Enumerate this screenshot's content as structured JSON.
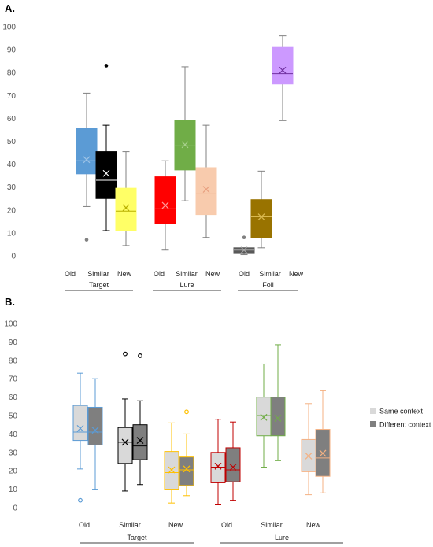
{
  "chart_data": [
    {
      "type": "box",
      "panel_label": "A.",
      "ylim": [
        0,
        100
      ],
      "yticks": [
        0,
        10,
        20,
        30,
        40,
        50,
        60,
        70,
        80,
        90,
        100
      ],
      "grid": false,
      "groups": [
        "Target",
        "Lure",
        "Foil"
      ],
      "categories": [
        "Old",
        "Similar",
        "New"
      ],
      "boxes": [
        {
          "group": "Target",
          "category": "Old",
          "min": 21.5,
          "q1": 35.8,
          "median": 41.5,
          "q3": 55.5,
          "max": 71,
          "mean": 42,
          "outliers": [
            7
          ],
          "color": "#5b9bd5",
          "median_color": "#9dc3e6",
          "mean_color": "#9dc3e6"
        },
        {
          "group": "Target",
          "category": "Similar",
          "min": 11,
          "q1": 25,
          "median": 33,
          "q3": 45.5,
          "max": 57,
          "mean": 36,
          "outliers": [
            83
          ],
          "color": "#000000",
          "median_color": "#ffffff",
          "mean_color": "#ffffff"
        },
        {
          "group": "Target",
          "category": "New",
          "min": 4.5,
          "q1": 11,
          "median": 19.5,
          "q3": 29.5,
          "max": 45.5,
          "mean": 21,
          "outliers": [],
          "color": "#ffff66",
          "median_color": "#b8b000",
          "mean_color": "#b8b000"
        },
        {
          "group": "Lure",
          "category": "Old",
          "min": 2.5,
          "q1": 14,
          "median": 20.5,
          "q3": 34.5,
          "max": 41.5,
          "mean": 22,
          "outliers": [],
          "color": "#ff0000",
          "median_color": "#ff9999",
          "mean_color": "#ff9999"
        },
        {
          "group": "Lure",
          "category": "Similar",
          "min": 24,
          "q1": 37.5,
          "median": 48,
          "q3": 59,
          "max": 82.5,
          "mean": 48.5,
          "outliers": [],
          "color": "#70ad47",
          "median_color": "#a9d18e",
          "mean_color": "#a9d18e"
        },
        {
          "group": "Lure",
          "category": "New",
          "min": 8,
          "q1": 18,
          "median": 27,
          "q3": 38.5,
          "max": 57,
          "mean": 29,
          "outliers": [],
          "color": "#f8cbad",
          "median_color": "#e8a080",
          "mean_color": "#e8a080"
        },
        {
          "group": "Foil",
          "category": "Old",
          "min": 0.5,
          "q1": 1,
          "median": 2.5,
          "q3": 3.5,
          "max": 3.5,
          "mean": 2.5,
          "outliers": [
            8
          ],
          "color": "#595959",
          "median_color": "#a6a6a6",
          "mean_color": "#a6a6a6"
        },
        {
          "group": "Foil",
          "category": "Similar",
          "min": 3.5,
          "q1": 8,
          "median": 17,
          "q3": 24.5,
          "max": 37,
          "mean": 17,
          "outliers": [],
          "color": "#997300",
          "median_color": "#d9b84f",
          "mean_color": "#d9b84f"
        },
        {
          "group": "Foil",
          "category": "New",
          "min": 59,
          "q1": 75,
          "median": 79.5,
          "q3": 91,
          "max": 96,
          "mean": 81,
          "outliers": [],
          "color": "#cc99ff",
          "median_color": "#7030a0",
          "mean_color": "#7030a0"
        }
      ]
    },
    {
      "type": "box",
      "panel_label": "B.",
      "ylim": [
        0,
        100
      ],
      "yticks": [
        0,
        10,
        20,
        30,
        40,
        50,
        60,
        70,
        80,
        90,
        100
      ],
      "grid": false,
      "groups": [
        "Target",
        "Lure"
      ],
      "categories": [
        "Old",
        "Similar",
        "New"
      ],
      "legend": {
        "placement": "right",
        "entries": [
          {
            "name": "Same context",
            "color": "#d9d9d9"
          },
          {
            "name": "Different context",
            "color": "#7f7f7f"
          }
        ]
      },
      "boxes": [
        {
          "group": "Target",
          "category": "Old",
          "series": "Same context",
          "min": 21,
          "q1": 36.5,
          "median": 41,
          "q3": 55.5,
          "max": 73,
          "mean": 43,
          "outliers": [
            4
          ],
          "color": "#d9d9d9",
          "line_color": "#5b9bd5"
        },
        {
          "group": "Target",
          "category": "Old",
          "series": "Different context",
          "min": 10,
          "q1": 34,
          "median": 41,
          "q3": 54.5,
          "max": 70,
          "mean": 42,
          "outliers": [],
          "color": "#7f7f7f",
          "line_color": "#5b9bd5"
        },
        {
          "group": "Target",
          "category": "Similar",
          "series": "Same context",
          "min": 9,
          "q1": 24,
          "median": 35.5,
          "q3": 43.5,
          "max": 59,
          "mean": 35.5,
          "outliers": [
            83.5
          ],
          "color": "#d9d9d9",
          "line_color": "#000000"
        },
        {
          "group": "Target",
          "category": "Similar",
          "series": "Different context",
          "min": 12.5,
          "q1": 26,
          "median": 33.5,
          "q3": 45,
          "max": 58,
          "mean": 36.5,
          "outliers": [
            82.5
          ],
          "color": "#7f7f7f",
          "line_color": "#000000"
        },
        {
          "group": "Target",
          "category": "New",
          "series": "Same context",
          "min": 2.5,
          "q1": 10,
          "median": 19,
          "q3": 30.5,
          "max": 46,
          "mean": 20.5,
          "outliers": [],
          "color": "#d9d9d9",
          "line_color": "#ffc000"
        },
        {
          "group": "Target",
          "category": "New",
          "series": "Different context",
          "min": 6.5,
          "q1": 12,
          "median": 20.5,
          "q3": 27.5,
          "max": 40,
          "mean": 21,
          "outliers": [
            52
          ],
          "color": "#7f7f7f",
          "line_color": "#ffc000"
        },
        {
          "group": "Lure",
          "category": "Old",
          "series": "Same context",
          "min": 1.5,
          "q1": 13.5,
          "median": 22,
          "q3": 30,
          "max": 48,
          "mean": 22.5,
          "outliers": [],
          "color": "#d9d9d9",
          "line_color": "#c00000"
        },
        {
          "group": "Lure",
          "category": "Old",
          "series": "Different context",
          "min": 4,
          "q1": 14,
          "median": 20.5,
          "q3": 32.5,
          "max": 46.5,
          "mean": 22,
          "outliers": [],
          "color": "#7f7f7f",
          "line_color": "#c00000"
        },
        {
          "group": "Lure",
          "category": "Similar",
          "series": "Same context",
          "min": 22,
          "q1": 39,
          "median": 50,
          "q3": 60,
          "max": 78,
          "mean": 49,
          "outliers": [],
          "color": "#d9d9d9",
          "line_color": "#70ad47"
        },
        {
          "group": "Lure",
          "category": "Similar",
          "series": "Different context",
          "min": 25.5,
          "q1": 39,
          "median": 48,
          "q3": 60,
          "max": 88.5,
          "mean": 48.5,
          "outliers": [],
          "color": "#7f7f7f",
          "line_color": "#70ad47"
        },
        {
          "group": "Lure",
          "category": "New",
          "series": "Same context",
          "min": 7,
          "q1": 19.5,
          "median": 28,
          "q3": 37,
          "max": 56.5,
          "mean": 28,
          "outliers": [],
          "color": "#d9d9d9",
          "line_color": "#f4b183"
        },
        {
          "group": "Lure",
          "category": "New",
          "series": "Different context",
          "min": 8,
          "q1": 17,
          "median": 27,
          "q3": 42.5,
          "max": 63.5,
          "mean": 29.5,
          "outliers": [],
          "color": "#7f7f7f",
          "line_color": "#f4b183"
        }
      ]
    }
  ]
}
